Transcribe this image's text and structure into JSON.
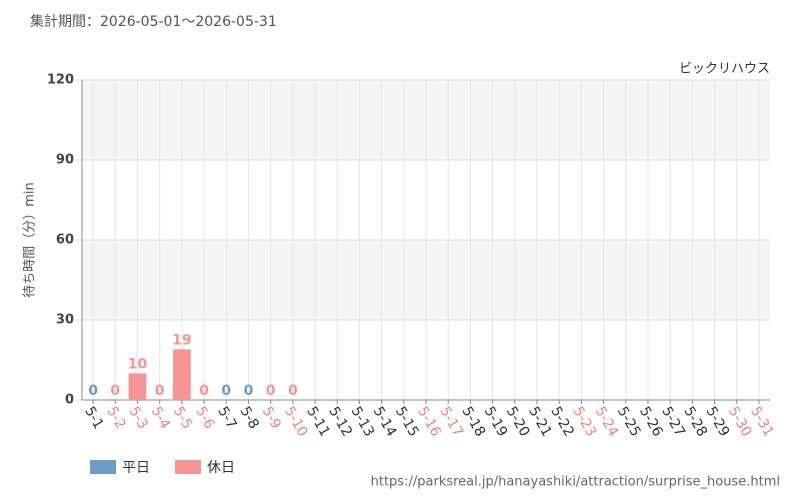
{
  "chart_data": {
    "type": "bar",
    "subtitle": "集計期間：2026-05-01～2026-05-31",
    "title": "ビックリハウス",
    "y_label": "待ち時間（分）min",
    "source": "https://parksreal.jp/hanayashiki/attraction/surprise_house.html",
    "categories": [
      "5-1",
      "5-2",
      "5-3",
      "5-4",
      "5-5",
      "5-6",
      "5-7",
      "5-8",
      "5-9",
      "5-10",
      "5-11",
      "5-12",
      "5-13",
      "5-14",
      "5-15",
      "5-16",
      "5-17",
      "5-18",
      "5-19",
      "5-20",
      "5-21",
      "5-22",
      "5-23",
      "5-24",
      "5-25",
      "5-26",
      "5-27",
      "5-28",
      "5-29",
      "5-30",
      "5-31"
    ],
    "category_colors": [
      "#333333",
      "#f08080",
      "#f08080",
      "#f08080",
      "#f08080",
      "#f08080",
      "#333333",
      "#333333",
      "#f08080",
      "#f08080",
      "#333333",
      "#333333",
      "#333333",
      "#333333",
      "#333333",
      "#f08080",
      "#f08080",
      "#333333",
      "#333333",
      "#333333",
      "#333333",
      "#333333",
      "#f08080",
      "#f08080",
      "#333333",
      "#333333",
      "#333333",
      "#333333",
      "#333333",
      "#f08080",
      "#f08080"
    ],
    "series": [
      {
        "name": "平日",
        "color": "#6a9ec5",
        "values": [
          0,
          null,
          null,
          null,
          null,
          null,
          0,
          0,
          null,
          null,
          null,
          null,
          null,
          null,
          null,
          null,
          null,
          null,
          null,
          null,
          null,
          null,
          null,
          null,
          null,
          null,
          null,
          null,
          null,
          null,
          null
        ]
      },
      {
        "name": "休日",
        "color": "#f79494",
        "values": [
          null,
          0,
          10,
          0,
          19,
          0,
          null,
          null,
          0,
          0,
          null,
          null,
          null,
          null,
          null,
          null,
          null,
          null,
          null,
          null,
          null,
          null,
          null,
          null,
          null,
          null,
          null,
          null,
          null,
          null,
          null
        ]
      }
    ],
    "ylim": [
      0,
      120
    ],
    "yticks": [
      0,
      30,
      60,
      90,
      120
    ],
    "grid": true
  }
}
